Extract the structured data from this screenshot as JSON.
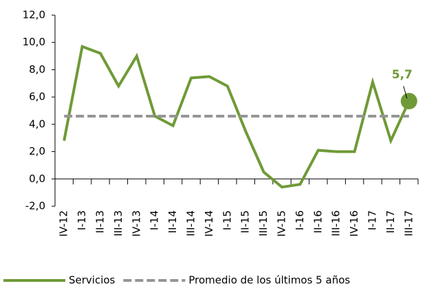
{
  "chart_data": {
    "type": "line",
    "categories": [
      "IV-12",
      "I-13",
      "II-13",
      "III-13",
      "IV-13",
      "I-14",
      "II-14",
      "III-14",
      "IV-14",
      "I-15",
      "II-15",
      "III-15",
      "IV-15",
      "I-16",
      "II-16",
      "III-16",
      "IV-16",
      "I-17",
      "II-17",
      "III-17"
    ],
    "series": [
      {
        "name": "Servicios",
        "color": "#6f9a37",
        "values": [
          2.8,
          9.7,
          9.2,
          6.8,
          9.0,
          4.6,
          3.9,
          7.4,
          7.5,
          6.8,
          3.5,
          0.5,
          -0.6,
          -0.4,
          2.1,
          2.0,
          2.0,
          7.1,
          2.8,
          5.7
        ],
        "value_labels": [
          null,
          null,
          null,
          null,
          null,
          null,
          null,
          null,
          null,
          null,
          null,
          null,
          null,
          null,
          null,
          null,
          null,
          null,
          null,
          "5,7"
        ]
      },
      {
        "name": "Promedio de los últimos 5 años",
        "color": "#959595",
        "dashed": true,
        "values": [
          4.6,
          4.6,
          4.6,
          4.6,
          4.6,
          4.6,
          4.6,
          4.6,
          4.6,
          4.6,
          4.6,
          4.6,
          4.6,
          4.6,
          4.6,
          4.6,
          4.6,
          4.6,
          4.6,
          4.6
        ]
      }
    ],
    "ylim": [
      -2,
      12
    ],
    "yticks": [
      {
        "value": -2,
        "label": "-2,0"
      },
      {
        "value": 0,
        "label": "0,0"
      },
      {
        "value": 2,
        "label": "2,0"
      },
      {
        "value": 4,
        "label": "4,0"
      },
      {
        "value": 6,
        "label": "6,0"
      },
      {
        "value": 8,
        "label": "8,0"
      },
      {
        "value": 10,
        "label": "10,0"
      },
      {
        "value": 12,
        "label": "12,0"
      }
    ],
    "legend": "bottom"
  }
}
